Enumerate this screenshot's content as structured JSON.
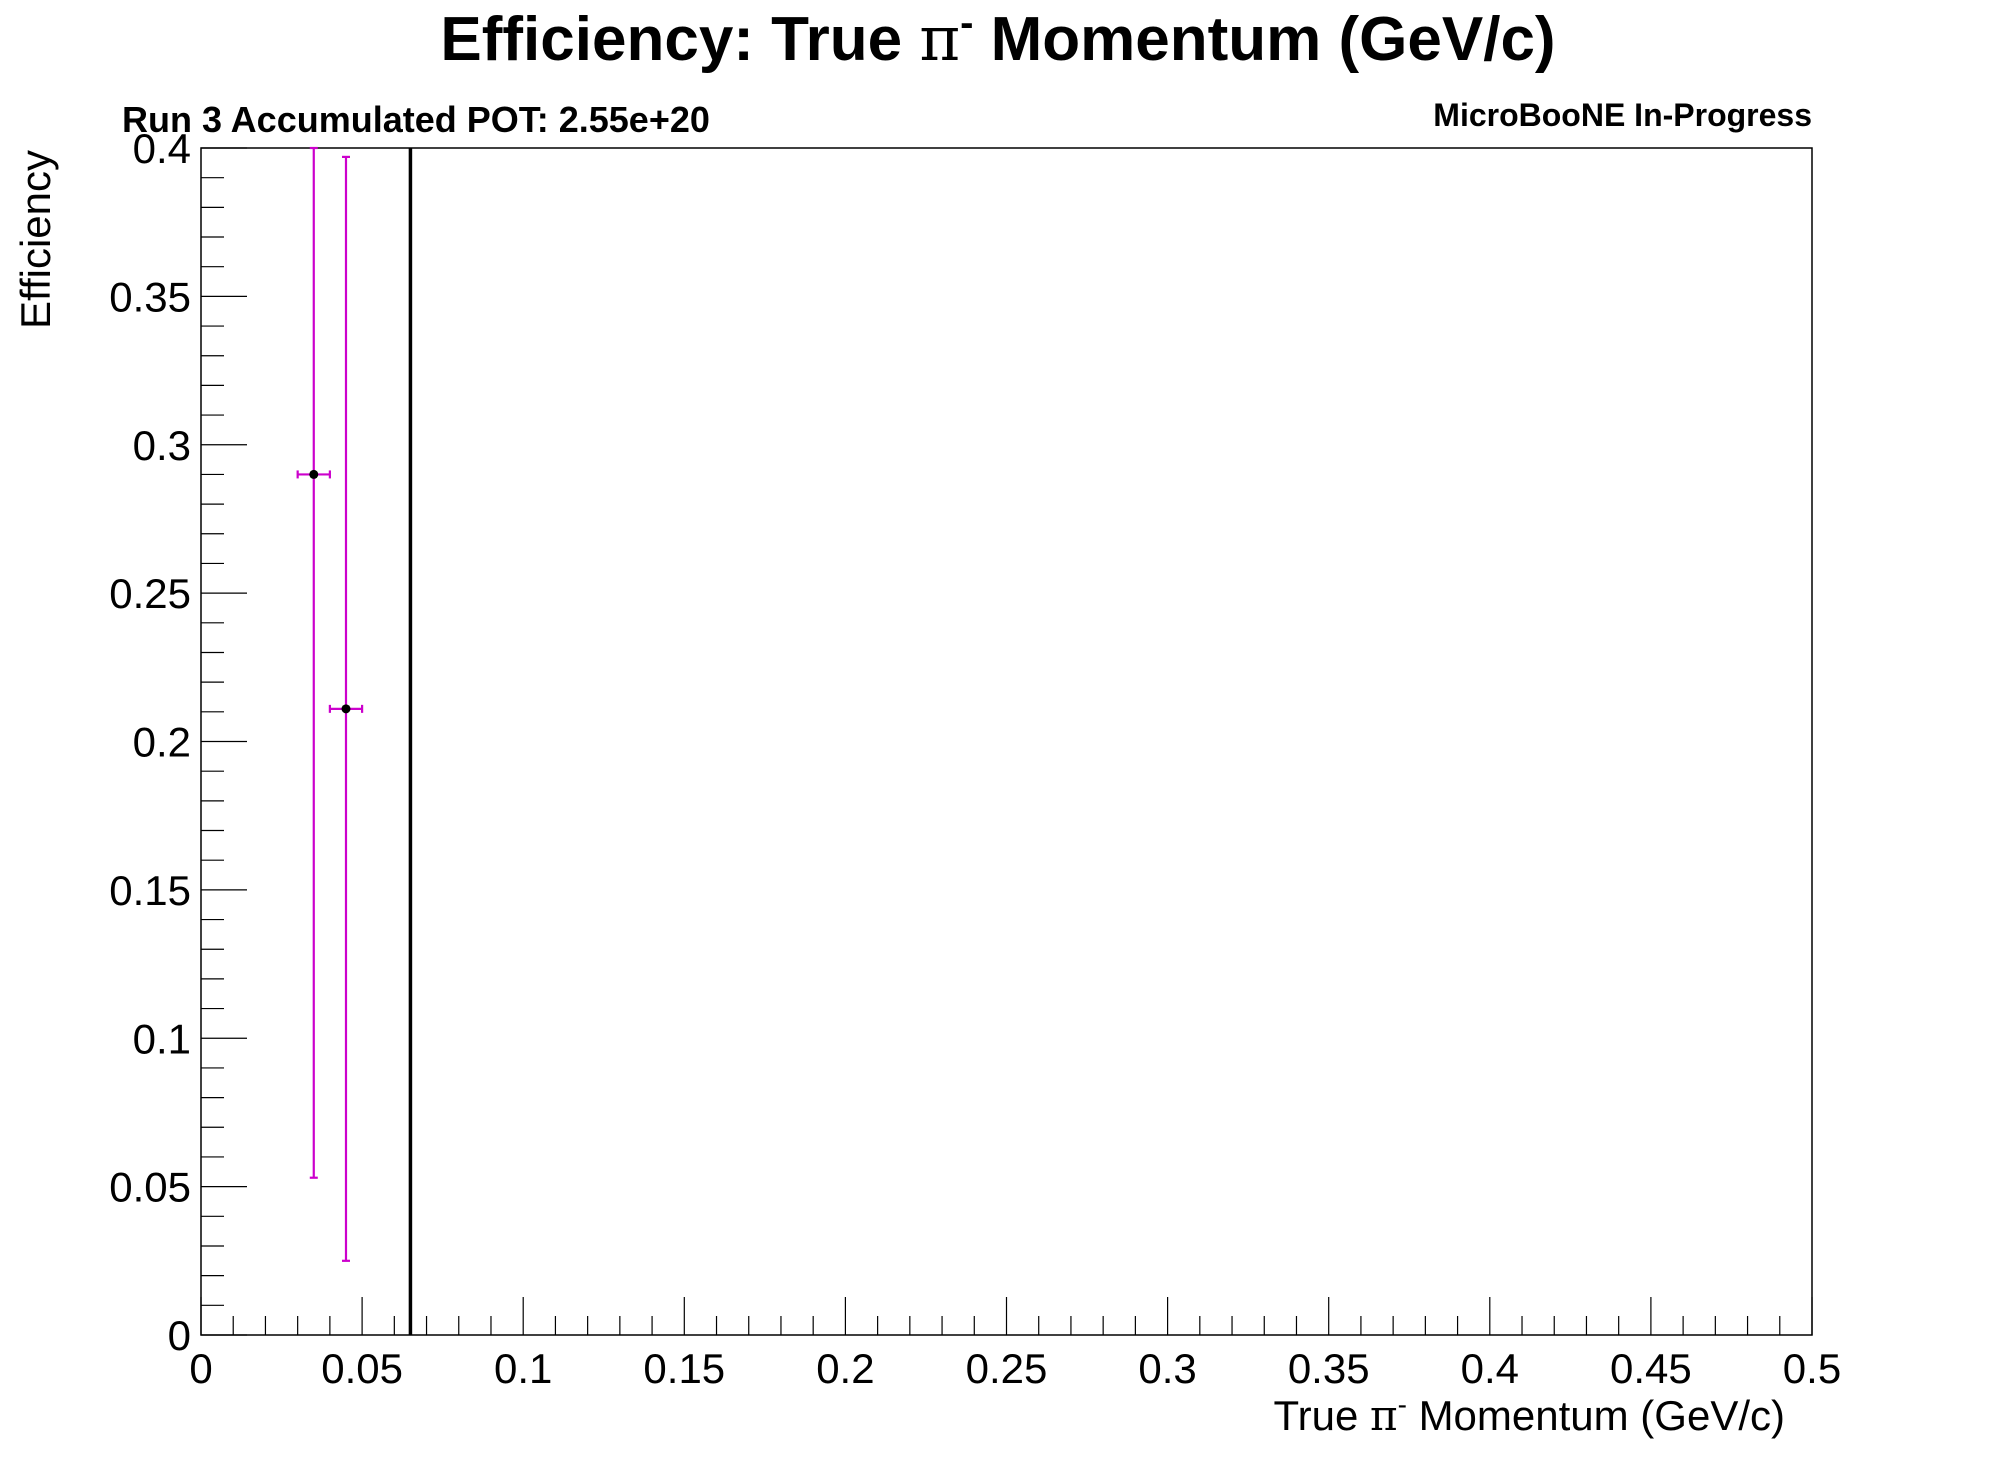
{
  "chart_data": {
    "type": "scatter",
    "title": {
      "pre": "Efficiency: True ",
      "sym": "π",
      "sup": "-",
      "post": " Momentum (GeV/c)"
    },
    "run_label": "Run 3 Accumulated POT: 2.55e+20",
    "experiment_label": "MicroBooNE In-Progress",
    "xlabel": {
      "pre": "True ",
      "sym": "π",
      "sup": "-",
      "post": " Momentum (GeV/c)"
    },
    "ylabel": "Efficiency",
    "xlim": [
      0,
      0.5
    ],
    "ylim": [
      0,
      0.4
    ],
    "x_ticks": [
      0,
      0.05,
      0.1,
      0.15,
      0.2,
      0.25,
      0.3,
      0.35,
      0.4,
      0.45,
      0.5
    ],
    "x_tick_labels": [
      "0",
      "0.05",
      "0.1",
      "0.15",
      "0.2",
      "0.25",
      "0.3",
      "0.35",
      "0.4",
      "0.45",
      "0.5"
    ],
    "y_ticks": [
      0,
      0.05,
      0.1,
      0.15,
      0.2,
      0.25,
      0.3,
      0.35,
      0.4
    ],
    "y_tick_labels": [
      "0",
      "0.05",
      "0.1",
      "0.15",
      "0.2",
      "0.25",
      "0.3",
      "0.35",
      "0.4"
    ],
    "series": [
      {
        "marker_color": "#000000",
        "error_color": "#cc00cc",
        "points": [
          {
            "x": 0.035,
            "y": 0.29,
            "xerr": 0.005,
            "y_low": 0.053,
            "y_high": 0.4
          },
          {
            "x": 0.045,
            "y": 0.211,
            "xerr": 0.005,
            "y_low": 0.025,
            "y_high": 0.397
          }
        ]
      }
    ],
    "vertical_lines": [
      {
        "x": 0.065,
        "color": "#000000"
      }
    ],
    "grid": false
  }
}
